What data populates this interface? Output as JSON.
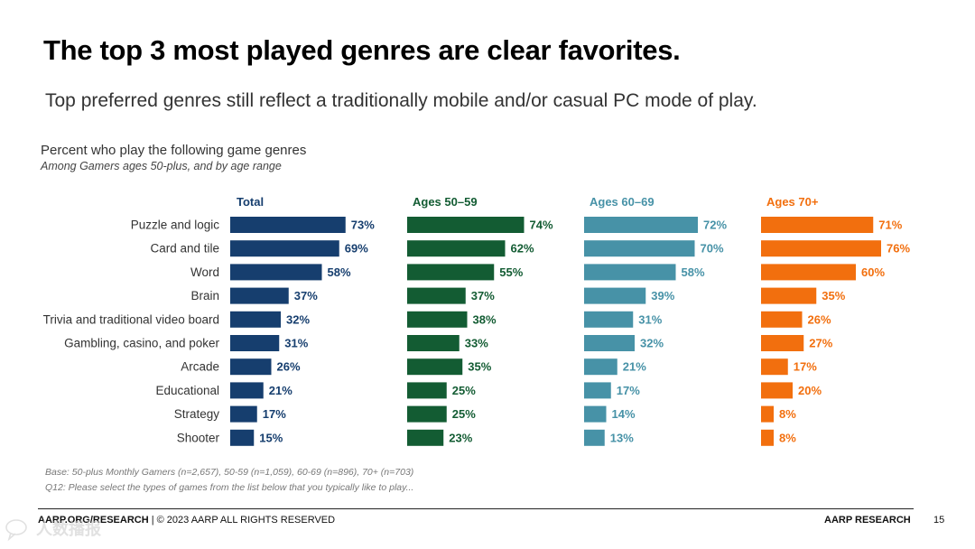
{
  "slide": {
    "headline": "The top 3 most played genres are clear favorites.",
    "subhead": "Top preferred genres still reflect a traditionally mobile and/or casual PC mode of play."
  },
  "chart_data": {
    "type": "bar",
    "orientation": "horizontal",
    "layout": "small-multiples",
    "title": "Percent who play the following game genres",
    "subtitle": "Among Gamers ages 50-plus, and by age range",
    "categories": [
      "Puzzle and logic",
      "Card and tile",
      "Word",
      "Brain",
      "Trivia and traditional video board",
      "Gambling, casino, and poker",
      "Arcade",
      "Educational",
      "Strategy",
      "Shooter"
    ],
    "value_suffix": "%",
    "xlim": [
      0,
      100
    ],
    "grid": false,
    "series": [
      {
        "name": "Total",
        "color": "#163e6e",
        "values": [
          73,
          69,
          58,
          37,
          32,
          31,
          26,
          21,
          17,
          15
        ]
      },
      {
        "name": "Ages 50–59",
        "color": "#135c33",
        "values": [
          74,
          62,
          55,
          37,
          38,
          33,
          35,
          25,
          25,
          23
        ]
      },
      {
        "name": "Ages 60–69",
        "color": "#4792a7",
        "values": [
          72,
          70,
          58,
          39,
          31,
          32,
          21,
          17,
          14,
          13
        ]
      },
      {
        "name": "Ages 70+",
        "color": "#f26f0e",
        "values": [
          71,
          76,
          60,
          35,
          26,
          27,
          17,
          20,
          8,
          8
        ]
      }
    ]
  },
  "notes": {
    "base": "Base: 50-plus Monthly Gamers (n=2,657), 50-59 (n=1,059), 60-69 (n=896), 70+ (n=703)",
    "question": "Q12: Please select the types of games from the list below that you typically like to play..."
  },
  "footer": {
    "site": "AARP.ORG/RESEARCH",
    "copyright": " | © 2023 AARP ALL RIGHTS RESERVED",
    "brand": "AARP RESEARCH",
    "page": "15"
  },
  "watermark": {
    "text": "人数播报",
    "color": "#c9c9c9",
    "icon": "chat-bubble-icon"
  }
}
